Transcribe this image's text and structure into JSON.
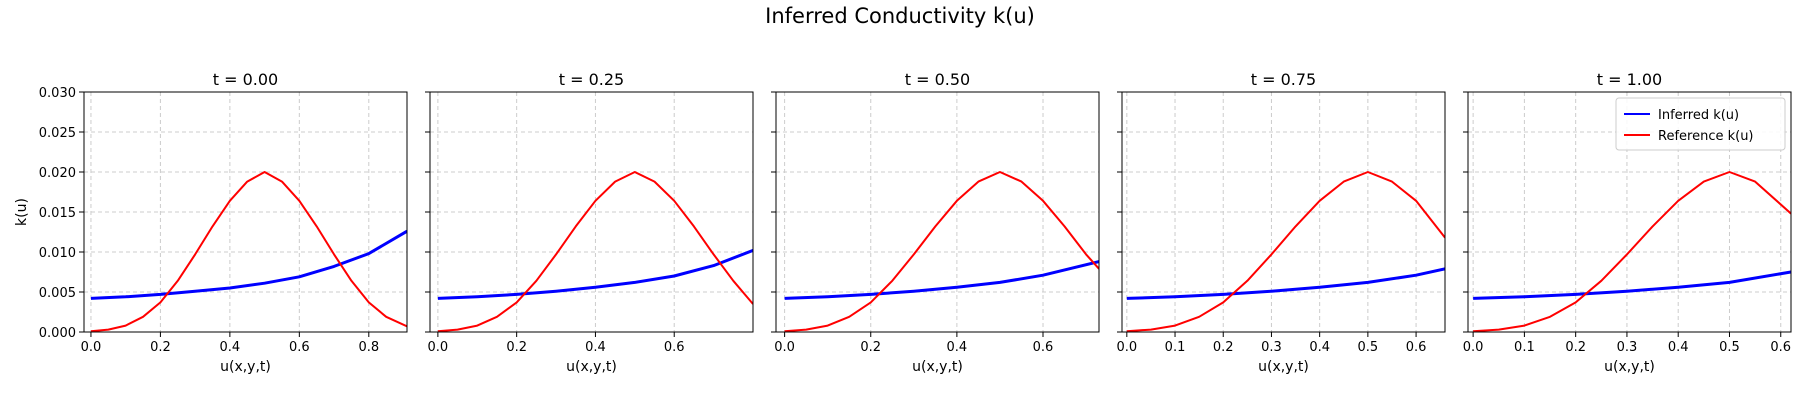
{
  "figure": {
    "title": "Inferred Conductivity k(u)"
  },
  "colors": {
    "inferred": "#0000ff",
    "reference": "#ff0000",
    "grid": "#cccccc"
  },
  "chart_data": [
    {
      "type": "line",
      "title": "t = 0.00",
      "xlabel": "u(x,y,t)",
      "ylabel": "k(u)",
      "xlim": [
        -0.02,
        0.91
      ],
      "ylim": [
        0,
        0.03
      ],
      "xticks": [
        0.0,
        0.2,
        0.4,
        0.6,
        0.8
      ],
      "xtick_labels": [
        "0.0",
        "0.2",
        "0.4",
        "0.6",
        "0.8"
      ],
      "yticks": [
        0,
        0.005,
        0.01,
        0.015,
        0.02,
        0.025,
        0.03
      ],
      "ytick_labels": [
        "0.000",
        "0.005",
        "0.010",
        "0.015",
        "0.020",
        "0.025",
        "0.030"
      ],
      "series": [
        {
          "name": "Inferred k(u)",
          "color": "#0000ff",
          "x": [
            0.0,
            0.1,
            0.2,
            0.3,
            0.4,
            0.5,
            0.6,
            0.7,
            0.8,
            0.91
          ],
          "y": [
            0.0042,
            0.0044,
            0.0047,
            0.0051,
            0.0055,
            0.0061,
            0.0069,
            0.0082,
            0.0098,
            0.0126
          ]
        },
        {
          "name": "Reference k(u)",
          "color": "#ff0000",
          "x": [
            0.0,
            0.05,
            0.1,
            0.15,
            0.2,
            0.25,
            0.3,
            0.35,
            0.4,
            0.45,
            0.5,
            0.55,
            0.6,
            0.65,
            0.7,
            0.75,
            0.8,
            0.85,
            0.91
          ],
          "y": [
            0.0001,
            0.0003,
            0.0008,
            0.0019,
            0.0037,
            0.0064,
            0.0097,
            0.0132,
            0.0164,
            0.0188,
            0.02,
            0.0188,
            0.0164,
            0.0132,
            0.0097,
            0.0064,
            0.0037,
            0.0019,
            0.0007
          ]
        }
      ],
      "show_legend": false,
      "grid": true
    },
    {
      "type": "line",
      "title": "t = 0.25",
      "xlabel": "u(x,y,t)",
      "ylabel": "",
      "xlim": [
        -0.02,
        0.8
      ],
      "ylim": [
        0,
        0.03
      ],
      "xticks": [
        0.0,
        0.2,
        0.4,
        0.6
      ],
      "xtick_labels": [
        "0.0",
        "0.2",
        "0.4",
        "0.6"
      ],
      "yticks": [
        0,
        0.005,
        0.01,
        0.015,
        0.02,
        0.025,
        0.03
      ],
      "ytick_labels": [],
      "series": [
        {
          "name": "Inferred k(u)",
          "color": "#0000ff",
          "x": [
            0.0,
            0.1,
            0.2,
            0.3,
            0.4,
            0.5,
            0.6,
            0.7,
            0.8
          ],
          "y": [
            0.0042,
            0.0044,
            0.0047,
            0.0051,
            0.0056,
            0.0062,
            0.007,
            0.0083,
            0.0102
          ]
        },
        {
          "name": "Reference k(u)",
          "color": "#ff0000",
          "x": [
            0.0,
            0.05,
            0.1,
            0.15,
            0.2,
            0.25,
            0.3,
            0.35,
            0.4,
            0.45,
            0.5,
            0.55,
            0.6,
            0.65,
            0.7,
            0.75,
            0.8
          ],
          "y": [
            0.0001,
            0.0003,
            0.0008,
            0.0019,
            0.0037,
            0.0064,
            0.0097,
            0.0132,
            0.0164,
            0.0188,
            0.02,
            0.0188,
            0.0164,
            0.0132,
            0.0097,
            0.0064,
            0.0035
          ]
        }
      ],
      "show_legend": false,
      "grid": true
    },
    {
      "type": "line",
      "title": "t = 0.50",
      "xlabel": "u(x,y,t)",
      "ylabel": "",
      "xlim": [
        -0.02,
        0.73
      ],
      "ylim": [
        0,
        0.03
      ],
      "xticks": [
        0.0,
        0.2,
        0.4,
        0.6
      ],
      "xtick_labels": [
        "0.0",
        "0.2",
        "0.4",
        "0.6"
      ],
      "yticks": [
        0,
        0.005,
        0.01,
        0.015,
        0.02,
        0.025,
        0.03
      ],
      "ytick_labels": [],
      "series": [
        {
          "name": "Inferred k(u)",
          "color": "#0000ff",
          "x": [
            0.0,
            0.1,
            0.2,
            0.3,
            0.4,
            0.5,
            0.6,
            0.73
          ],
          "y": [
            0.0042,
            0.0044,
            0.0047,
            0.0051,
            0.0056,
            0.0062,
            0.0071,
            0.0088
          ]
        },
        {
          "name": "Reference k(u)",
          "color": "#ff0000",
          "x": [
            0.0,
            0.05,
            0.1,
            0.15,
            0.2,
            0.25,
            0.3,
            0.35,
            0.4,
            0.45,
            0.5,
            0.55,
            0.6,
            0.65,
            0.7,
            0.73
          ],
          "y": [
            0.0001,
            0.0003,
            0.0008,
            0.0019,
            0.0037,
            0.0064,
            0.0097,
            0.0132,
            0.0164,
            0.0188,
            0.02,
            0.0188,
            0.0164,
            0.0132,
            0.0097,
            0.0079
          ]
        }
      ],
      "show_legend": false,
      "grid": true
    },
    {
      "type": "line",
      "title": "t = 0.75",
      "xlabel": "u(x,y,t)",
      "ylabel": "",
      "xlim": [
        -0.01,
        0.66
      ],
      "ylim": [
        0,
        0.03
      ],
      "xticks": [
        0.0,
        0.1,
        0.2,
        0.3,
        0.4,
        0.5,
        0.6
      ],
      "xtick_labels": [
        "0.0",
        "0.1",
        "0.2",
        "0.3",
        "0.4",
        "0.5",
        "0.6"
      ],
      "yticks": [
        0,
        0.005,
        0.01,
        0.015,
        0.02,
        0.025,
        0.03
      ],
      "ytick_labels": [],
      "series": [
        {
          "name": "Inferred k(u)",
          "color": "#0000ff",
          "x": [
            0.0,
            0.1,
            0.2,
            0.3,
            0.4,
            0.5,
            0.6,
            0.66
          ],
          "y": [
            0.0042,
            0.0044,
            0.0047,
            0.0051,
            0.0056,
            0.0062,
            0.0071,
            0.0079
          ]
        },
        {
          "name": "Reference k(u)",
          "color": "#ff0000",
          "x": [
            0.0,
            0.05,
            0.1,
            0.15,
            0.2,
            0.25,
            0.3,
            0.35,
            0.4,
            0.45,
            0.5,
            0.55,
            0.6,
            0.66
          ],
          "y": [
            0.0001,
            0.0003,
            0.0008,
            0.0019,
            0.0037,
            0.0064,
            0.0097,
            0.0132,
            0.0164,
            0.0188,
            0.02,
            0.0188,
            0.0164,
            0.0118
          ]
        }
      ],
      "show_legend": false,
      "grid": true
    },
    {
      "type": "line",
      "title": "t = 1.00",
      "xlabel": "u(x,y,t)",
      "ylabel": "",
      "xlim": [
        -0.01,
        0.62
      ],
      "ylim": [
        0,
        0.03
      ],
      "xticks": [
        0.0,
        0.1,
        0.2,
        0.3,
        0.4,
        0.5,
        0.6
      ],
      "xtick_labels": [
        "0.0",
        "0.1",
        "0.2",
        "0.3",
        "0.4",
        "0.5",
        "0.6"
      ],
      "yticks": [
        0,
        0.005,
        0.01,
        0.015,
        0.02,
        0.025,
        0.03
      ],
      "ytick_labels": [],
      "series": [
        {
          "name": "Inferred k(u)",
          "color": "#0000ff",
          "x": [
            0.0,
            0.1,
            0.2,
            0.3,
            0.4,
            0.5,
            0.62
          ],
          "y": [
            0.0042,
            0.0044,
            0.0047,
            0.0051,
            0.0056,
            0.0062,
            0.0075
          ]
        },
        {
          "name": "Reference k(u)",
          "color": "#ff0000",
          "x": [
            0.0,
            0.05,
            0.1,
            0.15,
            0.2,
            0.25,
            0.3,
            0.35,
            0.4,
            0.45,
            0.5,
            0.55,
            0.62
          ],
          "y": [
            0.0001,
            0.0003,
            0.0008,
            0.0019,
            0.0037,
            0.0064,
            0.0097,
            0.0132,
            0.0164,
            0.0188,
            0.02,
            0.0188,
            0.0148
          ]
        }
      ],
      "show_legend": true,
      "legend_position": "top-right",
      "grid": true
    }
  ]
}
